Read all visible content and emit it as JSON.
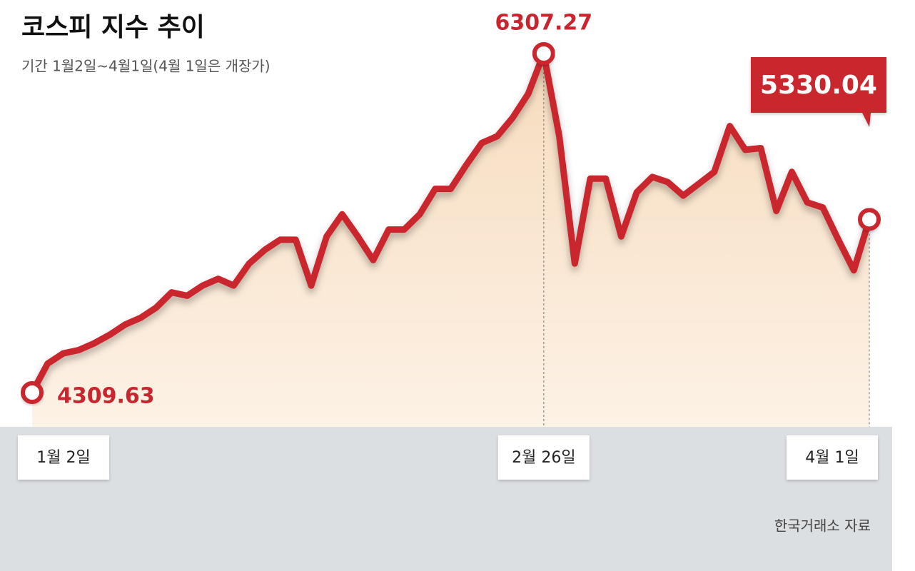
{
  "chart_data": {
    "type": "line",
    "title": "코스피 지수 추이",
    "subtitle": "기간 1월2일~4월1일(4월 1일은 개장가)",
    "source": "한국거래소 자료",
    "color": "#c9252f",
    "categories": [
      "1월 2일",
      null,
      null,
      null,
      null,
      null,
      null,
      null,
      null,
      null,
      null,
      null,
      null,
      null,
      null,
      null,
      null,
      null,
      null,
      null,
      null,
      null,
      null,
      null,
      null,
      null,
      null,
      null,
      null,
      null,
      null,
      null,
      null,
      "2월 26일",
      null,
      null,
      null,
      null,
      null,
      null,
      null,
      null,
      null,
      null,
      null,
      null,
      null,
      null,
      null,
      null,
      null,
      null,
      null,
      null,
      "4월 1일"
    ],
    "values": [
      4309.63,
      4480,
      4540,
      4560,
      4600,
      4650,
      4710,
      4750,
      4810,
      4900,
      4880,
      4940,
      4980,
      4940,
      5070,
      5150,
      5210,
      5210,
      4940,
      5230,
      5360,
      5230,
      5090,
      5270,
      5270,
      5360,
      5510,
      5510,
      5650,
      5780,
      5820,
      5930,
      6070,
      6307.27,
      5820,
      5070,
      5570,
      5570,
      5230,
      5490,
      5580,
      5550,
      5470,
      5540,
      5610,
      5880,
      5740,
      5750,
      5380,
      5610,
      5430,
      5400,
      5210,
      5030,
      5330.04
    ]
  }
}
